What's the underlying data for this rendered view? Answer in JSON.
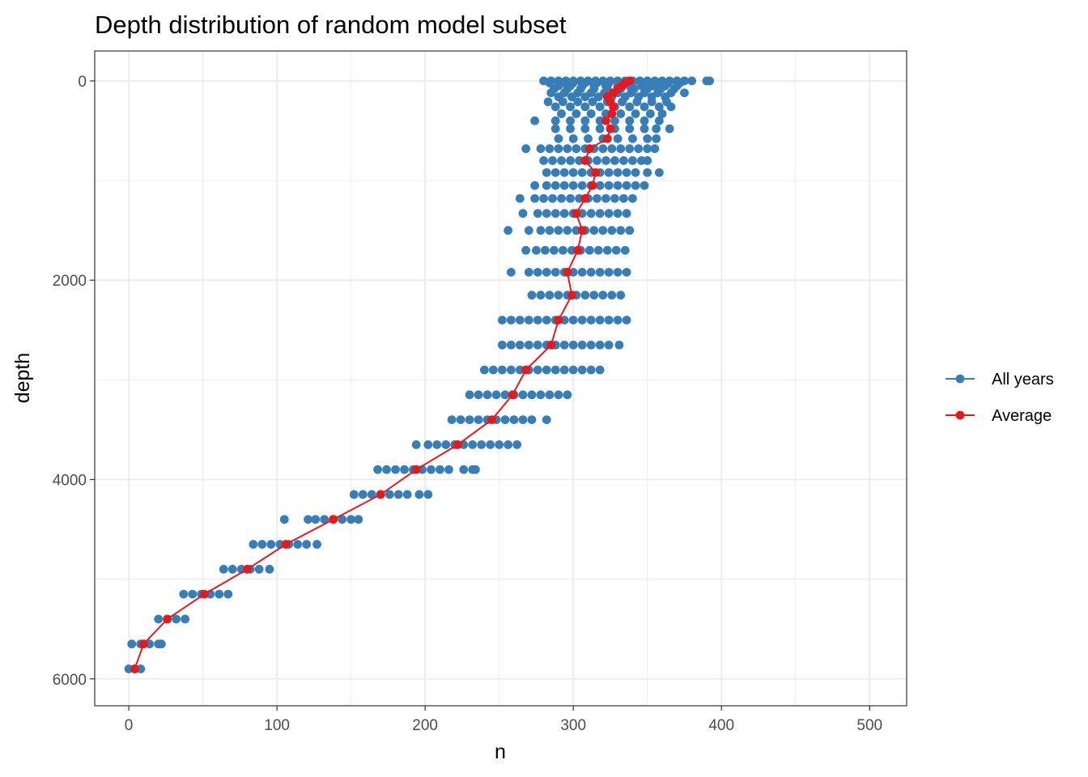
{
  "chart_data": {
    "type": "scatter",
    "title": "Depth distribution of random model subset",
    "xlabel": "n",
    "ylabel": "depth",
    "xlim": [
      -23,
      525
    ],
    "ylim": [
      -300,
      6270
    ],
    "y_reversed": true,
    "xticks": [
      0,
      100,
      200,
      300,
      400,
      500
    ],
    "yticks": [
      0,
      2000,
      4000,
      6000
    ],
    "grid": true,
    "legend_position": "right",
    "colors": {
      "all_years": "#377eb8",
      "average": "#e41a1c",
      "panel_border": "#333333",
      "grid": "#ebebeb"
    },
    "legend": [
      {
        "key": "all_years",
        "label": "All years"
      },
      {
        "key": "average",
        "label": "Average"
      }
    ],
    "series": [
      {
        "name": "All years",
        "style": "points",
        "bands": [
          {
            "depth": 0,
            "xs": [
              280,
              285,
              290,
              295,
              300,
              305,
              310,
              315,
              320,
              325,
              330,
              335,
              340,
              345,
              350,
              355,
              360,
              365,
              370,
              375,
              380,
              390,
              392
            ]
          },
          {
            "depth": 20,
            "xs": [
              284,
              292,
              300,
              308,
              316,
              324,
              332,
              340,
              348,
              356,
              364,
              372
            ]
          },
          {
            "depth": 50,
            "xs": [
              290,
              298,
              306,
              314,
              322,
              330,
              338,
              346,
              354,
              362,
              370
            ]
          },
          {
            "depth": 80,
            "xs": [
              287,
              296,
              305,
              314,
              323,
              332,
              341,
              350,
              359,
              368
            ]
          },
          {
            "depth": 120,
            "xs": [
              285,
              294,
              303,
              312,
              321,
              330,
              339,
              348,
              357,
              366,
              375
            ]
          },
          {
            "depth": 160,
            "xs": [
              290,
              299,
              308,
              317,
              326,
              335,
              344,
              353,
              362
            ]
          },
          {
            "depth": 210,
            "xs": [
              283,
              293,
              303,
              313,
              323,
              333,
              343,
              353,
              363
            ]
          },
          {
            "depth": 260,
            "xs": [
              288,
              298,
              308,
              318,
              328,
              338,
              348,
              358,
              366
            ]
          },
          {
            "depth": 330,
            "xs": [
              292,
              302,
              312,
              322,
              332,
              342,
              352,
              360
            ]
          },
          {
            "depth": 400,
            "xs": [
              274,
              288,
              298,
              308,
              318,
              328,
              338,
              348,
              358
            ]
          },
          {
            "depth": 480,
            "xs": [
              288,
              298,
              308,
              318,
              328,
              338,
              348,
              356,
              365
            ]
          },
          {
            "depth": 580,
            "xs": [
              290,
              300,
              310,
              320,
              330,
              340,
              350,
              356
            ]
          },
          {
            "depth": 680,
            "xs": [
              268,
              278,
              284,
              290,
              296,
              302,
              308,
              314,
              320,
              326,
              332,
              338,
              344,
              350,
              355
            ]
          },
          {
            "depth": 800,
            "xs": [
              280,
              286,
              292,
              298,
              304,
              310,
              316,
              322,
              328,
              334,
              340,
              346,
              350
            ]
          },
          {
            "depth": 920,
            "xs": [
              282,
              288,
              294,
              300,
              306,
              312,
              318,
              324,
              330,
              336,
              342,
              350,
              358
            ]
          },
          {
            "depth": 1050,
            "xs": [
              274,
              282,
              288,
              294,
              300,
              306,
              312,
              318,
              324,
              330,
              336,
              342,
              348
            ]
          },
          {
            "depth": 1180,
            "xs": [
              264,
              274,
              280,
              286,
              292,
              298,
              304,
              310,
              316,
              322,
              328,
              334,
              340
            ]
          },
          {
            "depth": 1330,
            "xs": [
              266,
              276,
              282,
              288,
              294,
              300,
              306,
              312,
              318,
              324,
              330,
              336
            ]
          },
          {
            "depth": 1500,
            "xs": [
              256,
              270,
              278,
              284,
              290,
              296,
              302,
              308,
              314,
              320,
              326,
              332,
              338
            ]
          },
          {
            "depth": 1700,
            "xs": [
              268,
              275,
              281,
              287,
              293,
              299,
              305,
              311,
              317,
              323,
              329,
              335
            ]
          },
          {
            "depth": 1920,
            "xs": [
              258,
              270,
              276,
              282,
              288,
              294,
              300,
              306,
              312,
              318,
              324,
              330,
              336
            ]
          },
          {
            "depth": 2150,
            "xs": [
              272,
              278,
              284,
              290,
              296,
              302,
              308,
              314,
              320,
              326,
              332
            ]
          },
          {
            "depth": 2400,
            "xs": [
              252,
              258,
              264,
              270,
              276,
              282,
              288,
              294,
              300,
              306,
              312,
              318,
              324,
              330,
              336
            ]
          },
          {
            "depth": 2650,
            "xs": [
              252,
              258,
              264,
              270,
              276,
              282,
              288,
              294,
              300,
              306,
              312,
              318,
              324,
              331
            ]
          },
          {
            "depth": 2900,
            "xs": [
              240,
              246,
              252,
              258,
              264,
              270,
              276,
              282,
              288,
              294,
              300,
              306,
              312,
              318
            ]
          },
          {
            "depth": 3150,
            "xs": [
              230,
              236,
              242,
              248,
              254,
              260,
              266,
              272,
              278,
              284,
              290,
              296
            ]
          },
          {
            "depth": 3400,
            "xs": [
              218,
              224,
              230,
              236,
              242,
              248,
              254,
              260,
              266,
              272,
              282
            ]
          },
          {
            "depth": 3650,
            "xs": [
              194,
              202,
              208,
              214,
              220,
              226,
              232,
              238,
              244,
              250,
              256,
              262
            ]
          },
          {
            "depth": 3900,
            "xs": [
              168,
              174,
              180,
              186,
              192,
              198,
              204,
              210,
              216,
              226,
              232,
              234
            ]
          },
          {
            "depth": 4150,
            "xs": [
              152,
              158,
              164,
              170,
              176,
              182,
              188,
              196,
              202
            ]
          },
          {
            "depth": 4400,
            "xs": [
              105,
              121,
              126,
              132,
              138,
              144,
              150,
              155
            ]
          },
          {
            "depth": 4650,
            "xs": [
              84,
              90,
              96,
              102,
              108,
              114,
              120,
              127
            ]
          },
          {
            "depth": 4900,
            "xs": [
              64,
              70,
              76,
              82,
              88,
              95
            ]
          },
          {
            "depth": 5150,
            "xs": [
              37,
              43,
              49,
              55,
              61,
              67
            ]
          },
          {
            "depth": 5400,
            "xs": [
              20,
              26,
              32,
              38
            ]
          },
          {
            "depth": 5650,
            "xs": [
              2,
              8,
              14,
              20,
              22
            ]
          },
          {
            "depth": 5900,
            "xs": [
              0,
              4,
              8
            ]
          }
        ]
      },
      {
        "name": "Average",
        "style": "line+points",
        "points": [
          {
            "x": 338,
            "y": 0
          },
          {
            "x": 335,
            "y": 20
          },
          {
            "x": 333,
            "y": 50
          },
          {
            "x": 330,
            "y": 80
          },
          {
            "x": 327,
            "y": 120
          },
          {
            "x": 323,
            "y": 160
          },
          {
            "x": 325,
            "y": 210
          },
          {
            "x": 327,
            "y": 260
          },
          {
            "x": 326,
            "y": 330
          },
          {
            "x": 322,
            "y": 400
          },
          {
            "x": 325,
            "y": 480
          },
          {
            "x": 323,
            "y": 580
          },
          {
            "x": 311,
            "y": 680
          },
          {
            "x": 308,
            "y": 800
          },
          {
            "x": 315,
            "y": 920
          },
          {
            "x": 313,
            "y": 1050
          },
          {
            "x": 308,
            "y": 1180
          },
          {
            "x": 302,
            "y": 1330
          },
          {
            "x": 306,
            "y": 1500
          },
          {
            "x": 303,
            "y": 1700
          },
          {
            "x": 296,
            "y": 1920
          },
          {
            "x": 299,
            "y": 2150
          },
          {
            "x": 290,
            "y": 2400
          },
          {
            "x": 285,
            "y": 2650
          },
          {
            "x": 268,
            "y": 2900
          },
          {
            "x": 259,
            "y": 3150
          },
          {
            "x": 245,
            "y": 3400
          },
          {
            "x": 222,
            "y": 3650
          },
          {
            "x": 194,
            "y": 3900
          },
          {
            "x": 170,
            "y": 4150
          },
          {
            "x": 138,
            "y": 4400
          },
          {
            "x": 106,
            "y": 4650
          },
          {
            "x": 80,
            "y": 4900
          },
          {
            "x": 51,
            "y": 5150
          },
          {
            "x": 26,
            "y": 5400
          },
          {
            "x": 10,
            "y": 5650
          },
          {
            "x": 4,
            "y": 5900
          }
        ]
      }
    ]
  }
}
